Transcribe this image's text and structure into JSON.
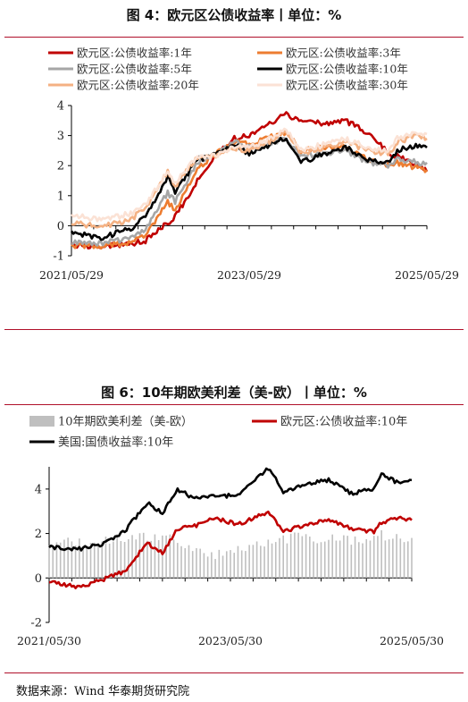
{
  "figure1": {
    "title": "图 4：欧元区公债收益率丨单位：%"
  },
  "figure2": {
    "title": "图 6：10年期欧美利差（美-欧）丨单位：%"
  },
  "source": "数据来源：Wind 华泰期货研究院",
  "chart_data": [
    {
      "type": "line",
      "title": "图 4：欧元区公债收益率丨单位：%",
      "xlabel": "",
      "ylabel": "",
      "x_ticks": [
        "2021/05/29",
        "2023/05/29",
        "2025/05/29"
      ],
      "ylim": [
        -1,
        4
      ],
      "y_ticks": [
        -1,
        0,
        1,
        2,
        3,
        4
      ],
      "grid": false,
      "legend": "top",
      "x": [
        "2021-05",
        "2021-09",
        "2022-01",
        "2022-03",
        "2022-06",
        "2022-07",
        "2022-10",
        "2022-12",
        "2023-03",
        "2023-05",
        "2023-07",
        "2023-10",
        "2023-12",
        "2024-03",
        "2024-06",
        "2024-09",
        "2024-12",
        "2025-01",
        "2025-04",
        "2025-05"
      ],
      "series": [
        {
          "name": "欧元区:公债收益率:1年",
          "color": "#c00000",
          "values": [
            -0.65,
            -0.7,
            -0.6,
            -0.5,
            0.1,
            0.3,
            1.5,
            2.2,
            2.9,
            3.0,
            3.3,
            3.7,
            3.5,
            3.4,
            3.5,
            3.1,
            2.4,
            2.3,
            2.0,
            1.8
          ]
        },
        {
          "name": "欧元区:公债收益率:3年",
          "color": "#ed7d31",
          "values": [
            -0.65,
            -0.7,
            -0.55,
            -0.3,
            0.8,
            0.5,
            1.9,
            2.3,
            2.8,
            2.7,
            2.9,
            3.1,
            2.5,
            2.6,
            2.6,
            2.2,
            2.0,
            2.1,
            1.9,
            1.85
          ]
        },
        {
          "name": "欧元区:公债收益率:5年",
          "color": "#a6a6a6",
          "values": [
            -0.55,
            -0.6,
            -0.4,
            -0.1,
            1.1,
            0.8,
            2.1,
            2.3,
            2.8,
            2.6,
            2.7,
            2.9,
            2.3,
            2.4,
            2.5,
            2.1,
            2.0,
            2.2,
            2.1,
            2.1
          ]
        },
        {
          "name": "欧元区:公债收益率:10年",
          "color": "#000000",
          "values": [
            -0.2,
            -0.4,
            -0.1,
            0.3,
            1.6,
            1.1,
            2.2,
            2.3,
            2.7,
            2.4,
            2.6,
            2.95,
            2.1,
            2.4,
            2.6,
            2.2,
            2.1,
            2.5,
            2.7,
            2.6
          ]
        },
        {
          "name": "欧元区:公债收益率:20年",
          "color": "#f4b183",
          "values": [
            0.1,
            -0.05,
            0.2,
            0.6,
            1.8,
            1.3,
            2.3,
            2.3,
            2.6,
            2.5,
            2.7,
            3.1,
            2.4,
            2.6,
            2.8,
            2.5,
            2.4,
            2.8,
            3.0,
            2.9
          ]
        },
        {
          "name": "欧元区:公债收益率:30年",
          "color": "#fbe2d5",
          "values": [
            0.35,
            0.2,
            0.4,
            0.7,
            1.8,
            1.4,
            2.3,
            2.3,
            2.6,
            2.6,
            2.8,
            3.2,
            2.5,
            2.7,
            2.9,
            2.6,
            2.5,
            2.9,
            3.1,
            3.05
          ]
        }
      ]
    },
    {
      "type": "line",
      "title": "图 6：10年期欧美利差（美-欧）丨单位：%",
      "xlabel": "",
      "ylabel": "",
      "x_ticks": [
        "2021/05/30",
        "2023/05/30",
        "2025/05/30"
      ],
      "ylim": [
        -2,
        5
      ],
      "y_ticks": [
        -2,
        0,
        2,
        4
      ],
      "grid": false,
      "legend": "top",
      "x": [
        "2021-05",
        "2021-09",
        "2021-12",
        "2022-03",
        "2022-06",
        "2022-08",
        "2022-10",
        "2022-12",
        "2023-03",
        "2023-06",
        "2023-10",
        "2023-12",
        "2024-03",
        "2024-06",
        "2024-09",
        "2024-12",
        "2025-01",
        "2025-03",
        "2025-05"
      ],
      "series": [
        {
          "name": "10年期欧美利差（美-欧）",
          "color": "#bfbfbf",
          "kind": "bar",
          "values": [
            1.6,
            1.6,
            1.6,
            1.8,
            1.8,
            1.8,
            1.8,
            1.3,
            1.0,
            1.3,
            1.6,
            1.8,
            1.8,
            1.8,
            1.7,
            1.9,
            1.9,
            1.8,
            1.8
          ]
        },
        {
          "name": "欧元区:公债收益率:10年",
          "color": "#c00000",
          "values": [
            -0.2,
            -0.4,
            -0.1,
            0.3,
            1.6,
            1.1,
            2.2,
            2.3,
            2.7,
            2.4,
            2.95,
            2.1,
            2.4,
            2.6,
            2.2,
            2.1,
            2.5,
            2.7,
            2.6
          ]
        },
        {
          "name": "美国:国债收益率:10年",
          "color": "#000000",
          "values": [
            1.4,
            1.3,
            1.5,
            2.1,
            3.4,
            2.9,
            4.0,
            3.6,
            3.7,
            3.7,
            4.95,
            3.9,
            4.2,
            4.4,
            3.8,
            4.0,
            4.7,
            4.3,
            4.4
          ]
        }
      ]
    }
  ]
}
